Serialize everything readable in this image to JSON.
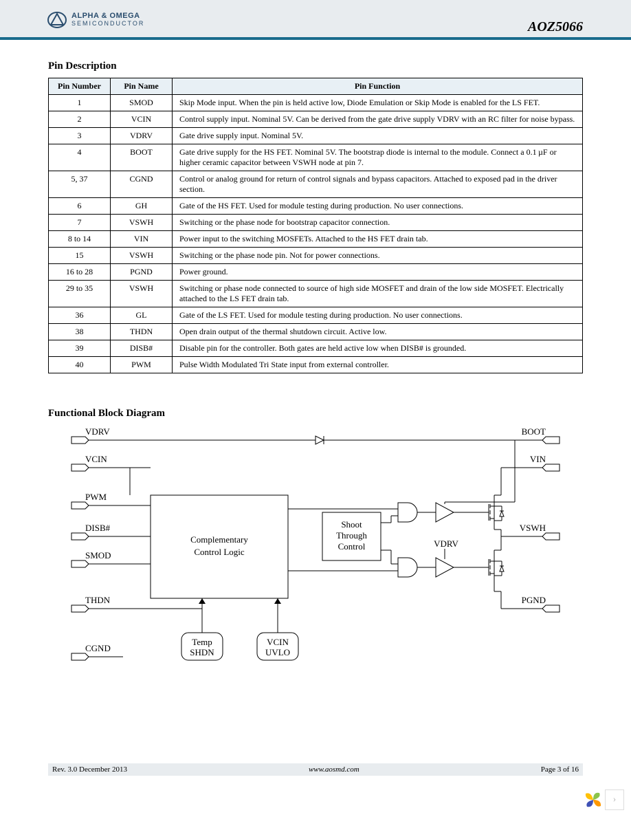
{
  "header": {
    "company_top": "ALPHA & OMEGA",
    "company_bot": "SEMICONDUCTOR",
    "part_number": "AOZ5066"
  },
  "pin_section": {
    "title": "Pin Description",
    "columns": [
      "Pin Number",
      "Pin Name",
      "Pin Function"
    ],
    "rows": [
      {
        "num": "1",
        "name": "SMOD",
        "fn": "Skip Mode input. When the pin is held active low, Diode Emulation or Skip Mode is enabled for the LS FET."
      },
      {
        "num": "2",
        "name": "VCIN",
        "fn": "Control supply input. Nominal 5V. Can be derived from the gate drive supply VDRV with an RC filter for noise bypass."
      },
      {
        "num": "3",
        "name": "VDRV",
        "fn": "Gate drive supply input. Nominal 5V."
      },
      {
        "num": "4",
        "name": "BOOT",
        "fn": "Gate drive supply for the HS FET. Nominal 5V. The bootstrap diode is internal to the module. Connect a 0.1 µF or higher ceramic capacitor between VSWH node at pin 7."
      },
      {
        "num": "5, 37",
        "name": "CGND",
        "fn": "Control or analog ground for return of control signals and bypass capacitors. Attached to exposed pad in the driver section."
      },
      {
        "num": "6",
        "name": "GH",
        "fn": "Gate of the HS FET. Used for module testing during production. No user connections."
      },
      {
        "num": "7",
        "name": "VSWH",
        "fn": "Switching or the phase node for bootstrap capacitor connection."
      },
      {
        "num": "8 to 14",
        "name": "VIN",
        "fn": "Power input to the switching MOSFETs. Attached to the HS FET drain tab."
      },
      {
        "num": "15",
        "name": "VSWH",
        "fn": "Switching or the phase node pin. Not for power connections."
      },
      {
        "num": "16 to 28",
        "name": "PGND",
        "fn": "Power ground."
      },
      {
        "num": "29 to 35",
        "name": "VSWH",
        "fn": "Switching or phase node connected to source of high side MOSFET and drain of the low side MOSFET. Electrically attached to the LS FET drain tab."
      },
      {
        "num": "36",
        "name": "GL",
        "fn": "Gate of the LS FET. Used for module testing during production. No user connections."
      },
      {
        "num": "38",
        "name": "THDN",
        "fn": "Open drain output of the thermal shutdown circuit. Active low."
      },
      {
        "num": "39",
        "name": "DISB#",
        "fn": "Disable pin for the controller. Both gates are held active low when DISB# is grounded."
      },
      {
        "num": "40",
        "name": "PWM",
        "fn": "Pulse Width Modulated Tri State input from external controller."
      }
    ]
  },
  "diagram": {
    "title": "Functional Block Diagram",
    "left_pins": [
      "VDRV",
      "VCIN",
      "PWM",
      "DISB#",
      "SMOD",
      "THDN",
      "CGND"
    ],
    "right_pins": [
      "BOOT",
      "VIN",
      "VSWH",
      "PGND"
    ],
    "block_main": "Complementary\nControl Logic",
    "block_shoot": "Shoot\nThrough\nControl",
    "block_temp": "Temp\nSHDN",
    "block_uvlo": "VCIN\nUVLO",
    "mid_label": "VDRV",
    "colors": {
      "stroke": "#000000",
      "bg": "#ffffff",
      "text": "#000000"
    },
    "font_size": 13
  },
  "footer": {
    "rev": "Rev. 3.0 December 2013",
    "url": "www.aosmd.com",
    "page": "Page 3 of 16"
  }
}
